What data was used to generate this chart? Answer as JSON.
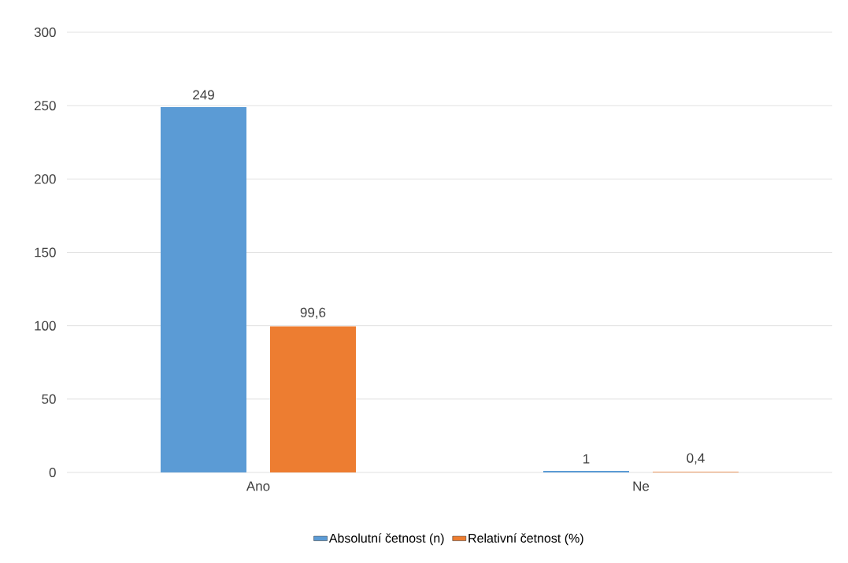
{
  "chart_data": {
    "type": "bar",
    "categories": [
      "Ano",
      "Ne"
    ],
    "series": [
      {
        "name": "Absolutní četnost (n)",
        "color": "#5b9bd5",
        "values": [
          249,
          1
        ],
        "value_labels": [
          "249",
          "1"
        ]
      },
      {
        "name": "Relativní četnost (%)",
        "color": "#ed7d31",
        "values": [
          99.6,
          0.4
        ],
        "value_labels": [
          "99,6",
          "0,4"
        ]
      }
    ],
    "ylim": [
      0,
      300
    ],
    "yticks": [
      0,
      50,
      100,
      150,
      200,
      250,
      300
    ],
    "grid": "y",
    "legend": "bottom"
  }
}
